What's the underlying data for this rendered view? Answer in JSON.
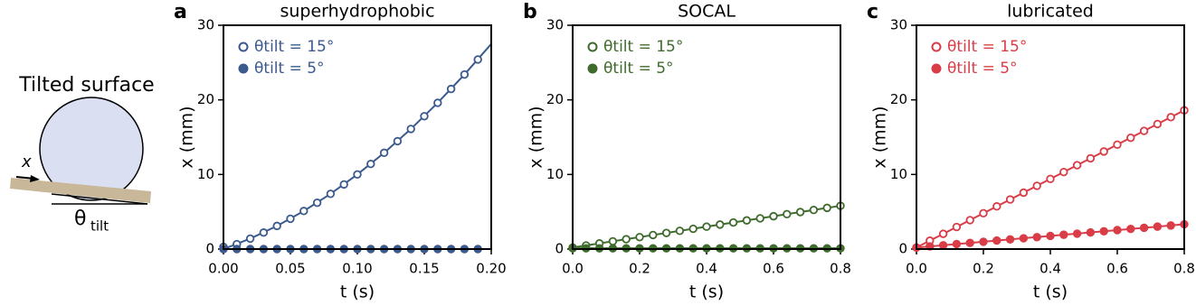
{
  "diagram": {
    "title": "Tilted surface",
    "x_label": "x",
    "theta": "θ",
    "theta_sub": "tilt"
  },
  "chart_data": [
    {
      "type": "scatter",
      "panel": "a",
      "title": "superhydrophobic",
      "x_label": "t (s)",
      "y_label": "x (mm)",
      "xlim": [
        0,
        0.2
      ],
      "ylim": [
        0,
        30
      ],
      "xticks": [
        {
          "value": 0,
          "label": "0.00"
        },
        {
          "value": 0.05,
          "label": "0.05"
        },
        {
          "value": 0.1,
          "label": "0.10"
        },
        {
          "value": 0.15,
          "label": "0.15"
        },
        {
          "value": 0.2,
          "label": "0.20"
        }
      ],
      "yticks": [
        0,
        10,
        20,
        30
      ],
      "legend": "upper left",
      "series": [
        {
          "name": "θtilt = 15°",
          "color": "#3b5a8e",
          "marker": "open",
          "x": [
            0,
            0.01,
            0.02,
            0.03,
            0.04,
            0.05,
            0.06,
            0.07,
            0.08,
            0.09,
            0.1,
            0.11,
            0.12,
            0.13,
            0.14,
            0.15,
            0.16,
            0.17,
            0.18,
            0.19
          ],
          "values": [
            0.3,
            0.66,
            1.4,
            2.21,
            3.1,
            4.06,
            5.1,
            6.21,
            7.4,
            8.66,
            10,
            11.41,
            12.9,
            14.46,
            16.1,
            17.81,
            19.6,
            21.46,
            23.4,
            25.41
          ],
          "fit": {
            "x": [
              0,
              0.02,
              0.04,
              0.06,
              0.08,
              0.1,
              0.12,
              0.14,
              0.16,
              0.18,
              0.2
            ],
            "values": [
              0,
              1.4,
              3.1,
              5.1,
              7.4,
              10,
              12.9,
              16.1,
              19.6,
              23.4,
              27.5
            ],
            "dash": false
          }
        },
        {
          "name": "θtilt = 5°",
          "color": "#3b5a8e",
          "marker": "filled",
          "x": [
            0,
            0.01,
            0.02,
            0.03,
            0.04,
            0.05,
            0.06,
            0.07,
            0.08,
            0.09,
            0.1,
            0.11,
            0.12,
            0.13,
            0.14,
            0.15,
            0.16,
            0.17,
            0.18,
            0.19
          ],
          "values": [
            0,
            0,
            0,
            0,
            0,
            0,
            0,
            0,
            0,
            0,
            0,
            0,
            0,
            0,
            0,
            0,
            0,
            0,
            0,
            0
          ],
          "fit": {
            "x": [
              0,
              0.19
            ],
            "values": [
              0,
              0
            ],
            "dash": true
          }
        }
      ]
    },
    {
      "type": "scatter",
      "panel": "b",
      "title": "SOCAL",
      "x_label": "t (s)",
      "y_label": "x (mm)",
      "xlim": [
        0,
        0.8
      ],
      "ylim": [
        0,
        30
      ],
      "xticks": [
        {
          "value": 0,
          "label": "0.0"
        },
        {
          "value": 0.2,
          "label": "0.2"
        },
        {
          "value": 0.4,
          "label": "0.4"
        },
        {
          "value": 0.6,
          "label": "0.6"
        },
        {
          "value": 0.8,
          "label": "0.8"
        }
      ],
      "yticks": [
        0,
        10,
        20,
        30
      ],
      "legend": "upper left",
      "series": [
        {
          "name": "θtilt = 15°",
          "color": "#3f6b2d",
          "marker": "open",
          "x": [
            0,
            0.04,
            0.08,
            0.12,
            0.16,
            0.2,
            0.24,
            0.28,
            0.32,
            0.36,
            0.4,
            0.44,
            0.48,
            0.52,
            0.56,
            0.6,
            0.64,
            0.68,
            0.72,
            0.76,
            0.8
          ],
          "values": [
            0.2,
            0.48,
            0.76,
            1.04,
            1.32,
            1.6,
            1.88,
            2.16,
            2.44,
            2.72,
            3.0,
            3.28,
            3.56,
            3.84,
            4.12,
            4.4,
            4.68,
            4.96,
            5.24,
            5.52,
            5.8
          ],
          "fit": {
            "x": [
              0,
              0.8
            ],
            "values": [
              0.2,
              5.8
            ],
            "dash": false
          }
        },
        {
          "name": "θtilt = 5°",
          "color": "#3f6b2d",
          "marker": "filled",
          "x": [
            0,
            0.04,
            0.08,
            0.12,
            0.16,
            0.2,
            0.24,
            0.28,
            0.32,
            0.36,
            0.4,
            0.44,
            0.48,
            0.52,
            0.56,
            0.6,
            0.64,
            0.68,
            0.72,
            0.76,
            0.8
          ],
          "values": [
            0.1,
            0.1,
            0.1,
            0.1,
            0.1,
            0.1,
            0.1,
            0.1,
            0.1,
            0.1,
            0.1,
            0.1,
            0.1,
            0.1,
            0.1,
            0.1,
            0.1,
            0.1,
            0.1,
            0.1,
            0.1
          ],
          "fit": {
            "x": [
              0,
              0.8
            ],
            "values": [
              0.1,
              0.1
            ],
            "dash": false
          }
        }
      ]
    },
    {
      "type": "scatter",
      "panel": "c",
      "title": "lubricated",
      "x_label": "t (s)",
      "y_label": "x (mm)",
      "xlim": [
        0,
        0.8
      ],
      "ylim": [
        0,
        30
      ],
      "xticks": [
        {
          "value": 0,
          "label": "0.0"
        },
        {
          "value": 0.2,
          "label": "0.2"
        },
        {
          "value": 0.4,
          "label": "0.4"
        },
        {
          "value": 0.6,
          "label": "0.6"
        },
        {
          "value": 0.8,
          "label": "0.8"
        }
      ],
      "yticks": [
        0,
        10,
        20,
        30
      ],
      "legend": "upper left",
      "series": [
        {
          "name": "θtilt = 15°",
          "color": "#d93d47",
          "marker": "open",
          "x": [
            0,
            0.04,
            0.08,
            0.12,
            0.16,
            0.2,
            0.24,
            0.28,
            0.32,
            0.36,
            0.4,
            0.44,
            0.48,
            0.52,
            0.56,
            0.6,
            0.64,
            0.68,
            0.72,
            0.76,
            0.8
          ],
          "values": [
            0.2,
            1.12,
            2.04,
            2.96,
            3.88,
            4.8,
            5.72,
            6.64,
            7.56,
            8.48,
            9.4,
            10.32,
            11.24,
            12.16,
            13.08,
            14.0,
            14.92,
            15.84,
            16.76,
            17.68,
            18.6
          ],
          "fit": {
            "x": [
              0,
              0.8
            ],
            "values": [
              0.2,
              18.6
            ],
            "dash": false
          }
        },
        {
          "name": "θtilt = 5°",
          "color": "#d93d47",
          "marker": "filled",
          "x": [
            0,
            0.04,
            0.08,
            0.12,
            0.16,
            0.2,
            0.24,
            0.28,
            0.32,
            0.36,
            0.4,
            0.44,
            0.48,
            0.52,
            0.56,
            0.6,
            0.64,
            0.68,
            0.72,
            0.76,
            0.8
          ],
          "values": [
            0.2,
            0.36,
            0.51,
            0.67,
            0.82,
            0.98,
            1.14,
            1.29,
            1.45,
            1.6,
            1.76,
            1.92,
            2.07,
            2.23,
            2.38,
            2.54,
            2.7,
            2.85,
            3.01,
            3.16,
            3.32
          ],
          "fit": {
            "x": [
              0,
              0.8
            ],
            "values": [
              0.2,
              3.32
            ],
            "dash": false
          }
        }
      ]
    }
  ]
}
